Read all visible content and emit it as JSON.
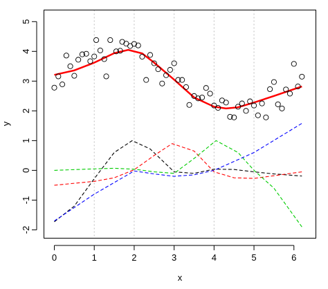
{
  "chart_data": {
    "type": "scatter",
    "xlabel": "x",
    "ylabel": "y",
    "xlim": [
      -0.26,
      6.55
    ],
    "ylim": [
      -2.28,
      5.39
    ],
    "x_ticks": [
      0,
      1,
      2,
      3,
      4,
      5,
      6
    ],
    "y_ticks": [
      -2,
      -1,
      0,
      1,
      2,
      3,
      4,
      5
    ],
    "vertical_gridlines_at": [
      1,
      2,
      3,
      4,
      5
    ],
    "points": [
      [
        0.0,
        2.78
      ],
      [
        0.1,
        3.16
      ],
      [
        0.2,
        2.89
      ],
      [
        0.3,
        3.86
      ],
      [
        0.4,
        3.5
      ],
      [
        0.5,
        3.18
      ],
      [
        0.6,
        3.72
      ],
      [
        0.7,
        3.9
      ],
      [
        0.8,
        3.92
      ],
      [
        0.9,
        3.67
      ],
      [
        1.0,
        3.83
      ],
      [
        1.05,
        4.38
      ],
      [
        1.15,
        4.03
      ],
      [
        1.25,
        3.74
      ],
      [
        1.3,
        3.16
      ],
      [
        1.4,
        4.38
      ],
      [
        1.55,
        4.0
      ],
      [
        1.65,
        4.02
      ],
      [
        1.7,
        4.32
      ],
      [
        1.8,
        4.26
      ],
      [
        1.9,
        4.18
      ],
      [
        2.0,
        4.25
      ],
      [
        2.1,
        4.2
      ],
      [
        2.2,
        3.82
      ],
      [
        2.3,
        3.04
      ],
      [
        2.4,
        3.88
      ],
      [
        2.5,
        3.6
      ],
      [
        2.6,
        3.4
      ],
      [
        2.7,
        2.92
      ],
      [
        2.8,
        3.2
      ],
      [
        2.9,
        3.38
      ],
      [
        3.0,
        3.6
      ],
      [
        3.1,
        3.04
      ],
      [
        3.2,
        3.04
      ],
      [
        3.3,
        2.8
      ],
      [
        3.38,
        2.2
      ],
      [
        3.5,
        2.5
      ],
      [
        3.6,
        2.42
      ],
      [
        3.7,
        2.45
      ],
      [
        3.8,
        2.77
      ],
      [
        3.9,
        2.58
      ],
      [
        4.0,
        2.18
      ],
      [
        4.1,
        2.1
      ],
      [
        4.2,
        2.35
      ],
      [
        4.3,
        2.28
      ],
      [
        4.4,
        1.8
      ],
      [
        4.5,
        1.78
      ],
      [
        4.6,
        2.14
      ],
      [
        4.7,
        2.25
      ],
      [
        4.8,
        2.0
      ],
      [
        4.9,
        2.32
      ],
      [
        5.0,
        2.18
      ],
      [
        5.1,
        1.85
      ],
      [
        5.2,
        2.25
      ],
      [
        5.3,
        1.78
      ],
      [
        5.4,
        2.73
      ],
      [
        5.5,
        2.97
      ],
      [
        5.6,
        2.22
      ],
      [
        5.7,
        2.08
      ],
      [
        5.8,
        2.72
      ],
      [
        5.9,
        2.58
      ],
      [
        6.0,
        3.58
      ],
      [
        6.1,
        2.82
      ],
      [
        6.2,
        3.15
      ]
    ],
    "series": [
      {
        "color": "#ff0000",
        "style": "solid",
        "x": [
          0.0,
          0.5,
          1.0,
          1.5,
          1.85,
          2.2,
          2.5,
          3.0,
          3.5,
          4.0,
          4.3,
          4.6,
          5.0,
          5.5,
          6.0,
          6.2
        ],
        "y": [
          3.21,
          3.36,
          3.62,
          3.94,
          4.05,
          3.93,
          3.62,
          3.05,
          2.45,
          2.14,
          2.08,
          2.12,
          2.28,
          2.5,
          2.73,
          2.82
        ]
      },
      {
        "color": "#000000",
        "style": "dashed",
        "x": [
          0.0,
          0.5,
          1.0,
          1.5,
          1.95,
          2.4,
          3.0,
          3.5,
          4.0,
          4.5,
          5.0,
          5.5,
          6.2
        ],
        "y": [
          -1.73,
          -1.2,
          -0.28,
          0.6,
          1.0,
          0.72,
          -0.05,
          -0.1,
          0.04,
          0.03,
          -0.05,
          -0.12,
          -0.19
        ]
      },
      {
        "color": "#ff0000",
        "style": "dashed",
        "x": [
          0.0,
          1.0,
          1.5,
          2.0,
          2.5,
          2.95,
          3.5,
          4.0,
          4.5,
          5.0,
          5.5,
          6.2
        ],
        "y": [
          -0.5,
          -0.37,
          -0.25,
          0.02,
          0.5,
          0.9,
          0.65,
          -0.05,
          -0.25,
          -0.27,
          -0.18,
          -0.05
        ]
      },
      {
        "color": "#00cc00",
        "style": "dashed",
        "x": [
          0.0,
          1.0,
          1.5,
          2.0,
          2.5,
          3.0,
          3.5,
          4.05,
          4.6,
          5.0,
          5.5,
          6.2
        ],
        "y": [
          0.0,
          0.05,
          0.07,
          0.04,
          -0.05,
          -0.1,
          0.4,
          1.0,
          0.6,
          0.0,
          -0.6,
          -1.9
        ]
      },
      {
        "color": "#0000ff",
        "style": "dashed",
        "x": [
          0.0,
          1.0,
          2.0,
          2.5,
          3.0,
          3.5,
          4.0,
          5.0,
          6.2
        ],
        "y": [
          -1.7,
          -0.8,
          -0.02,
          -0.12,
          -0.2,
          -0.15,
          0.0,
          0.6,
          1.58
        ]
      }
    ]
  }
}
